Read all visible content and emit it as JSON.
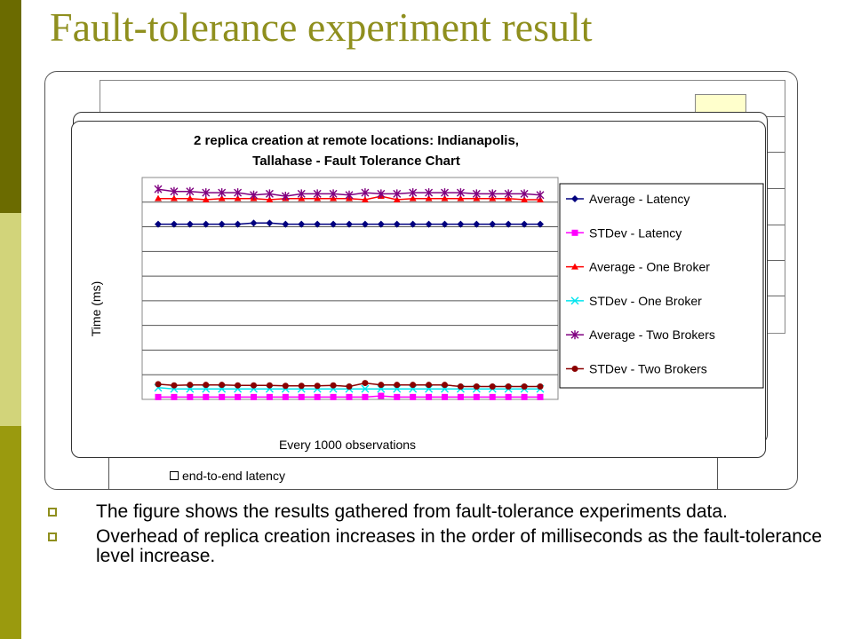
{
  "slide": {
    "title": "Fault-tolerance experiment result",
    "colors": {
      "sidebar_dark": "#6b6b00",
      "sidebar_light": "#d2d47a",
      "sidebar_mid": "#9a9a0e",
      "title": "#8f8f1e"
    }
  },
  "background_chart": {
    "legend_item": "end-to-end latency"
  },
  "bullets": [
    "The figure shows the results gathered from fault-tolerance experiments data.",
    "Overhead of replica creation increases in the order of milliseconds as the fault-tolerance level increase."
  ],
  "chart_data": {
    "type": "line",
    "title": "2 replica creation at remote locations: Indianapolis, Tallahase - Fault Tolerance Chart",
    "title_lines": [
      "2 replica creation at remote locations: Indianapolis,",
      "Tallahase - Fault Tolerance Chart"
    ],
    "xlabel": "Every 1000 observations",
    "ylabel": "Time (ms)",
    "x": [
      1,
      2,
      3,
      4,
      5,
      6,
      7,
      8,
      9,
      10,
      11,
      12,
      13,
      14,
      15,
      16,
      17,
      18,
      19,
      20,
      21,
      22,
      23,
      24,
      25
    ],
    "ylim": [
      0,
      9.5
    ],
    "grid": true,
    "legend_position": "right",
    "series": [
      {
        "name": "Average - Latency",
        "color": "#00007f",
        "marker": "diamond",
        "values": [
          7.5,
          7.5,
          7.5,
          7.5,
          7.5,
          7.5,
          7.55,
          7.55,
          7.5,
          7.5,
          7.5,
          7.5,
          7.5,
          7.5,
          7.5,
          7.5,
          7.5,
          7.5,
          7.5,
          7.5,
          7.5,
          7.5,
          7.5,
          7.5,
          7.5
        ]
      },
      {
        "name": "STDev - Latency",
        "color": "#ff00ff",
        "marker": "square",
        "values": [
          0.1,
          0.1,
          0.1,
          0.1,
          0.1,
          0.1,
          0.1,
          0.1,
          0.1,
          0.1,
          0.1,
          0.1,
          0.1,
          0.1,
          0.15,
          0.1,
          0.1,
          0.1,
          0.1,
          0.1,
          0.1,
          0.1,
          0.1,
          0.1,
          0.1
        ]
      },
      {
        "name": "Average - One Broker",
        "color": "#ff0000",
        "marker": "triangle",
        "values": [
          8.6,
          8.6,
          8.6,
          8.55,
          8.6,
          8.6,
          8.6,
          8.55,
          8.6,
          8.6,
          8.6,
          8.6,
          8.6,
          8.55,
          8.7,
          8.55,
          8.6,
          8.6,
          8.6,
          8.6,
          8.6,
          8.6,
          8.6,
          8.55,
          8.55
        ]
      },
      {
        "name": "STDev - One Broker",
        "color": "#00e5ee",
        "marker": "x",
        "values": [
          0.5,
          0.45,
          0.45,
          0.45,
          0.45,
          0.45,
          0.45,
          0.45,
          0.45,
          0.45,
          0.45,
          0.45,
          0.45,
          0.45,
          0.45,
          0.45,
          0.45,
          0.45,
          0.45,
          0.45,
          0.45,
          0.45,
          0.45,
          0.45,
          0.45
        ]
      },
      {
        "name": "Average - Two Brokers",
        "color": "#800080",
        "marker": "star",
        "values": [
          9.0,
          8.9,
          8.9,
          8.85,
          8.85,
          8.85,
          8.75,
          8.8,
          8.7,
          8.8,
          8.8,
          8.8,
          8.75,
          8.85,
          8.8,
          8.8,
          8.85,
          8.85,
          8.85,
          8.85,
          8.8,
          8.8,
          8.8,
          8.8,
          8.75
        ]
      },
      {
        "name": "STDev - Two Brokers",
        "color": "#8b0000",
        "marker": "circle",
        "values": [
          0.65,
          0.6,
          0.62,
          0.62,
          0.62,
          0.6,
          0.6,
          0.6,
          0.58,
          0.58,
          0.58,
          0.6,
          0.55,
          0.7,
          0.62,
          0.62,
          0.62,
          0.62,
          0.62,
          0.55,
          0.55,
          0.55,
          0.55,
          0.55,
          0.55
        ]
      }
    ]
  }
}
